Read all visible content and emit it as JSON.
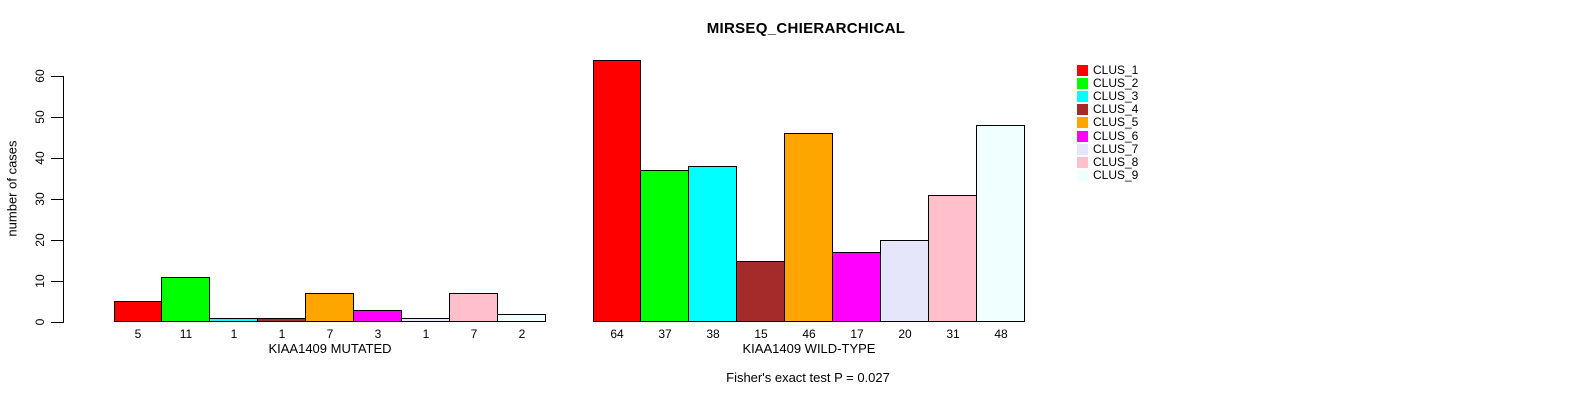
{
  "title": "MIRSEQ_CHIERARCHICAL",
  "chart_data": {
    "type": "bar",
    "title": "MIRSEQ_CHIERARCHICAL",
    "ylabel": "number of cases",
    "ylim": [
      0,
      65
    ],
    "yticks": [
      0,
      10,
      20,
      30,
      40,
      50,
      60
    ],
    "grid": false,
    "legend_position": "top-right",
    "categories": [
      "CLUS_1",
      "CLUS_2",
      "CLUS_3",
      "CLUS_4",
      "CLUS_5",
      "CLUS_6",
      "CLUS_7",
      "CLUS_8",
      "CLUS_9"
    ],
    "colors": [
      "#FF0000",
      "#00FF00",
      "#00FFFF",
      "#A52A2A",
      "#FFA500",
      "#FF00FF",
      "#E6E6FA",
      "#FFC0CB",
      "#F0FFFF"
    ],
    "bar_border_color": "#000000",
    "groups": [
      {
        "label": "KIAA1409 MUTATED",
        "values": [
          5,
          11,
          1,
          1,
          7,
          3,
          1,
          7,
          2
        ]
      },
      {
        "label": "KIAA1409 WILD-TYPE",
        "values": [
          64,
          37,
          38,
          15,
          46,
          17,
          20,
          31,
          48
        ]
      }
    ],
    "bar_value_labels_shown": true,
    "annotation": "Fisher's exact test P = 0.027"
  },
  "legend": {
    "items": [
      {
        "label": "CLUS_1",
        "color": "#FF0000"
      },
      {
        "label": "CLUS_2",
        "color": "#00FF00"
      },
      {
        "label": "CLUS_3",
        "color": "#00FFFF"
      },
      {
        "label": "CLUS_4",
        "color": "#A52A2A"
      },
      {
        "label": "CLUS_5",
        "color": "#FFA500"
      },
      {
        "label": "CLUS_6",
        "color": "#FF00FF"
      },
      {
        "label": "CLUS_7",
        "color": "#E6E6FA"
      },
      {
        "label": "CLUS_8",
        "color": "#FFC0CB"
      },
      {
        "label": "CLUS_9",
        "color": "#F0FFFF"
      }
    ]
  }
}
